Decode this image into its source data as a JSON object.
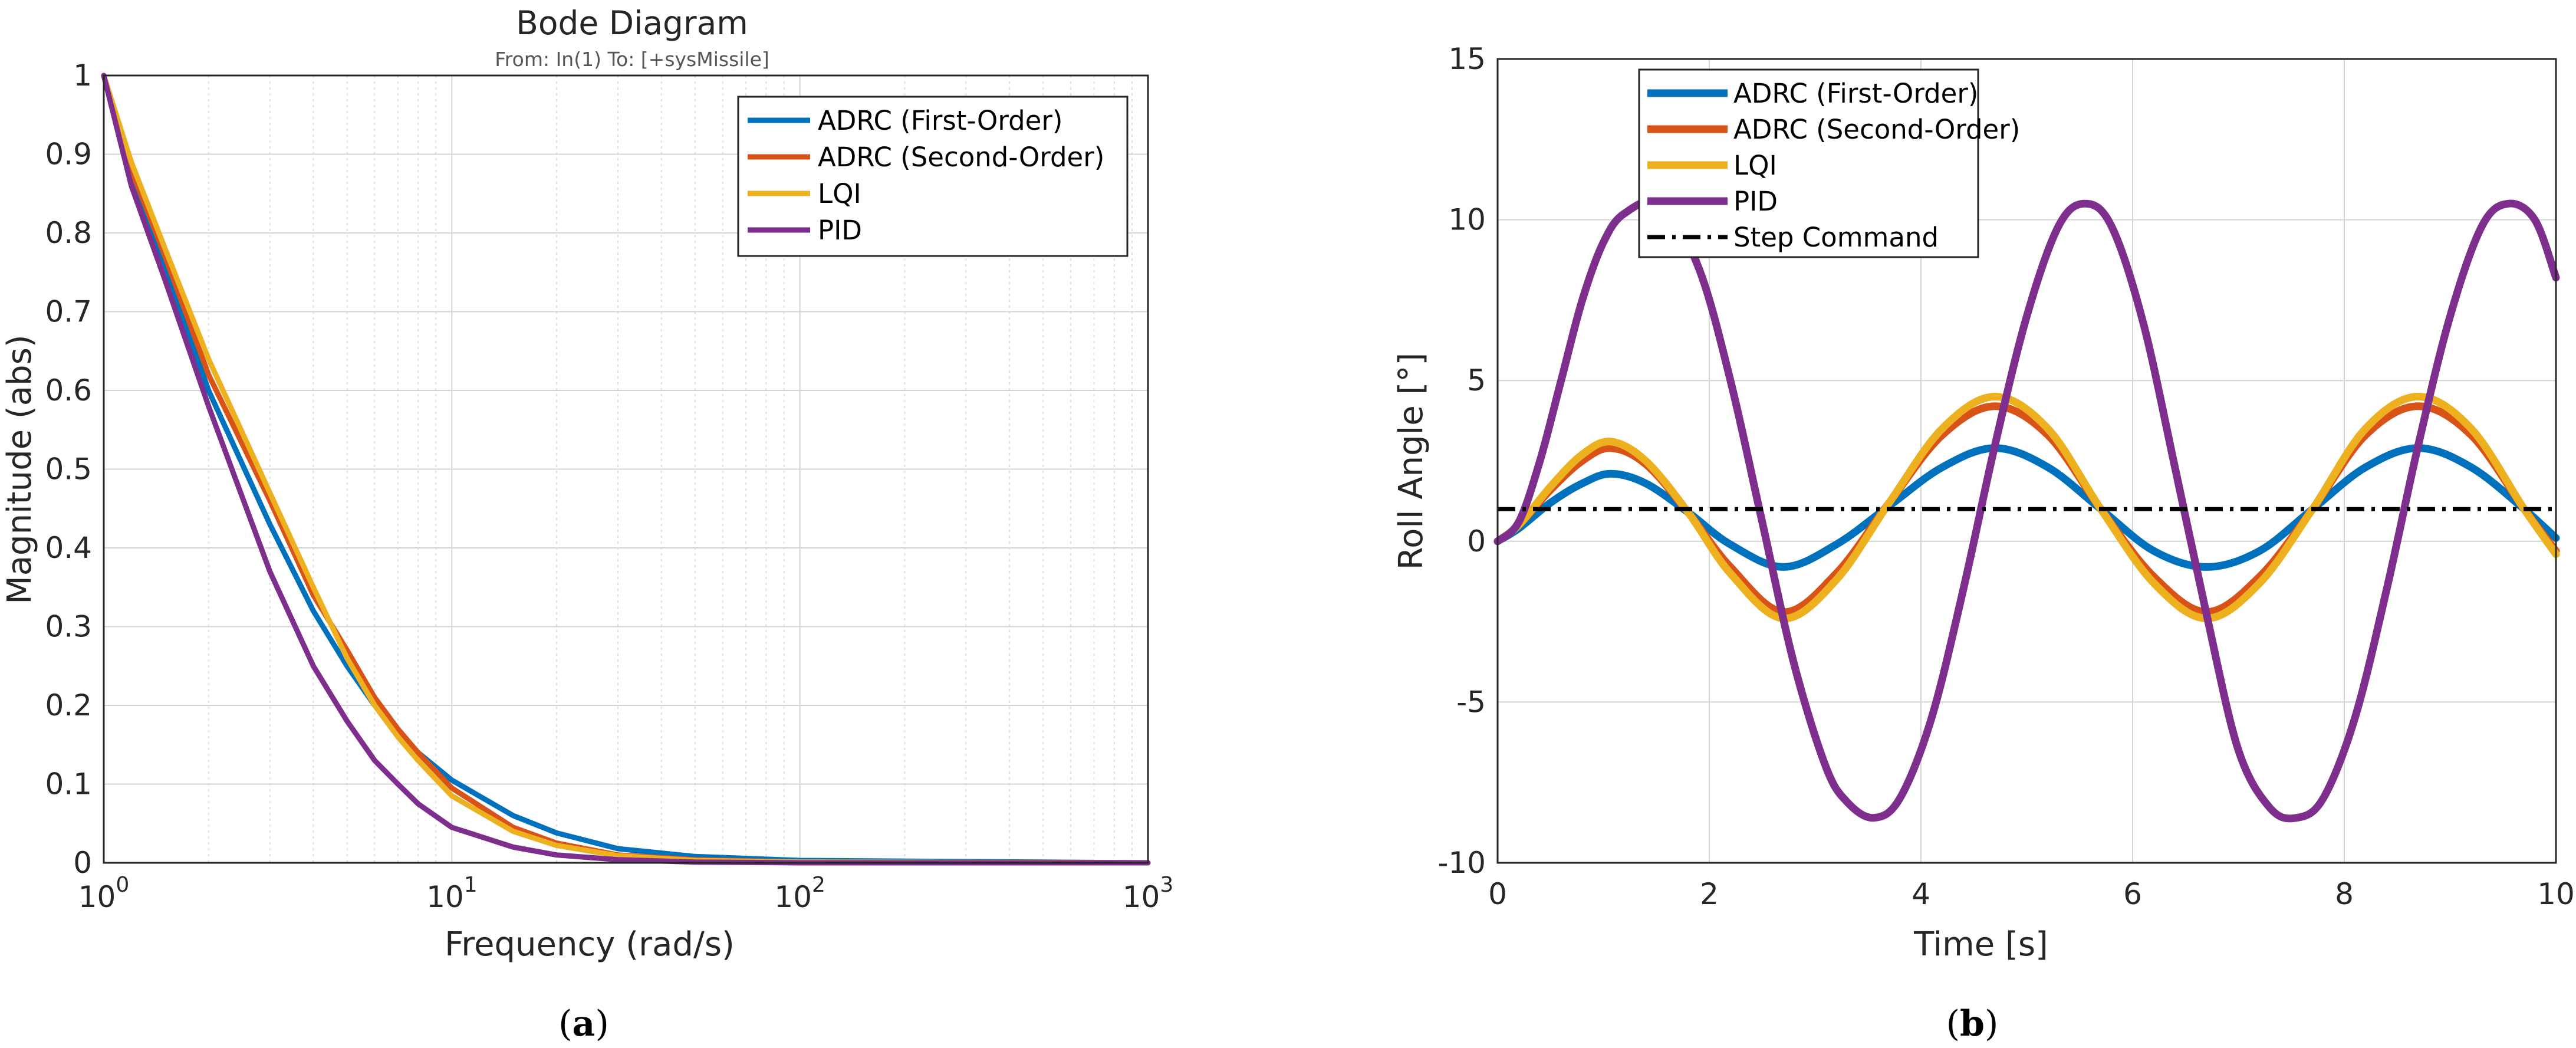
{
  "panels": [
    {
      "label_open": "(",
      "label_letter": "a",
      "label_close": ")"
    },
    {
      "label_open": "(",
      "label_letter": "b",
      "label_close": ")"
    }
  ],
  "chart_data": [
    {
      "type": "line",
      "title": "Bode Diagram",
      "subtitle": "From: In(1)  To: [+sysMissile]",
      "xlabel": "Frequency  (rad/s)",
      "ylabel": "Magnitude (abs)",
      "x_scale": "log",
      "xlim": [
        1,
        1000
      ],
      "ylim": [
        0,
        1
      ],
      "xticks": [
        1,
        10,
        100,
        1000
      ],
      "xtick_labels": [
        {
          "base": "10",
          "exp": "0"
        },
        {
          "base": "10",
          "exp": "1"
        },
        {
          "base": "10",
          "exp": "2"
        },
        {
          "base": "10",
          "exp": "3"
        }
      ],
      "yticks": [
        0,
        0.1,
        0.2,
        0.3,
        0.4,
        0.5,
        0.6,
        0.7,
        0.8,
        0.9,
        1
      ],
      "ytick_labels": [
        "0",
        "0.1",
        "0.2",
        "0.3",
        "0.4",
        "0.5",
        "0.6",
        "0.7",
        "0.8",
        "0.9",
        "1"
      ],
      "grid": true,
      "minor_grid": true,
      "legend_position": "top-right",
      "series": [
        {
          "name": "ADRC (First-Order)",
          "color": "#0072BD",
          "x": [
            1,
            1.2,
            1.5,
            2,
            3,
            4,
            5,
            6,
            7,
            8,
            10,
            15,
            20,
            30,
            50,
            100,
            1000
          ],
          "y": [
            1.0,
            0.87,
            0.76,
            0.6,
            0.43,
            0.32,
            0.25,
            0.2,
            0.165,
            0.14,
            0.105,
            0.06,
            0.038,
            0.018,
            0.008,
            0.003,
            0.0
          ]
        },
        {
          "name": "ADRC (Second-Order)",
          "color": "#D95319",
          "x": [
            1,
            1.2,
            1.5,
            2,
            3,
            4,
            5,
            6,
            7,
            8,
            10,
            15,
            20,
            30,
            50,
            100,
            1000
          ],
          "y": [
            1.0,
            0.88,
            0.77,
            0.62,
            0.46,
            0.34,
            0.27,
            0.21,
            0.17,
            0.14,
            0.095,
            0.045,
            0.025,
            0.01,
            0.004,
            0.001,
            0.0
          ]
        },
        {
          "name": "LQI",
          "color": "#EDB120",
          "x": [
            1,
            1.2,
            1.5,
            2,
            3,
            4,
            5,
            6,
            7,
            8,
            10,
            15,
            20,
            30,
            50,
            100,
            1000
          ],
          "y": [
            1.0,
            0.89,
            0.78,
            0.64,
            0.47,
            0.35,
            0.26,
            0.2,
            0.16,
            0.13,
            0.085,
            0.04,
            0.022,
            0.009,
            0.003,
            0.001,
            0.0
          ]
        },
        {
          "name": "PID",
          "color": "#7E2F8E",
          "x": [
            1,
            1.2,
            1.5,
            2,
            3,
            4,
            5,
            6,
            7,
            8,
            10,
            15,
            20,
            30,
            50,
            100,
            1000
          ],
          "y": [
            1.0,
            0.86,
            0.74,
            0.58,
            0.37,
            0.25,
            0.18,
            0.13,
            0.1,
            0.075,
            0.045,
            0.02,
            0.01,
            0.004,
            0.001,
            0.0,
            0.0
          ]
        }
      ]
    },
    {
      "type": "line",
      "title": "",
      "xlabel": "Time [s]",
      "ylabel": "Roll Angle [°]",
      "xlim": [
        0,
        10
      ],
      "ylim": [
        -10,
        15
      ],
      "xticks": [
        0,
        2,
        4,
        6,
        8,
        10
      ],
      "xtick_labels": [
        "0",
        "2",
        "4",
        "6",
        "8",
        "10"
      ],
      "yticks": [
        -10,
        -5,
        0,
        5,
        10,
        15
      ],
      "ytick_labels": [
        "-10",
        "-5",
        "0",
        "5",
        "10",
        "15"
      ],
      "grid": true,
      "legend_position": "top-left",
      "series": [
        {
          "name": "ADRC (First-Order)",
          "color": "#0072BD",
          "dashed": false,
          "x": [
            0,
            0.2,
            0.5,
            0.8,
            1.07,
            1.4,
            1.8,
            2.2,
            2.7,
            3.2,
            3.7,
            4.2,
            4.7,
            5.2,
            5.7,
            6.2,
            6.7,
            7.2,
            7.7,
            8.2,
            8.7,
            9.2,
            9.7,
            10
          ],
          "y": [
            0,
            0.4,
            1.2,
            1.8,
            2.1,
            1.8,
            0.9,
            -0.1,
            -0.8,
            -0.1,
            1.1,
            2.3,
            2.9,
            2.3,
            1.0,
            -0.3,
            -0.8,
            -0.3,
            1.0,
            2.3,
            2.9,
            2.3,
            1.0,
            0.1
          ]
        },
        {
          "name": "ADRC (Second-Order)",
          "color": "#D95319",
          "dashed": false,
          "x": [
            0,
            0.2,
            0.5,
            0.8,
            1.07,
            1.4,
            1.8,
            2.2,
            2.7,
            3.2,
            3.7,
            4.2,
            4.7,
            5.2,
            5.7,
            6.2,
            6.7,
            7.2,
            7.7,
            8.2,
            8.7,
            9.2,
            9.7,
            10
          ],
          "y": [
            0,
            0.5,
            1.6,
            2.5,
            2.9,
            2.4,
            0.9,
            -0.8,
            -2.2,
            -1.0,
            1.2,
            3.3,
            4.2,
            3.3,
            1.0,
            -1.1,
            -2.2,
            -1.1,
            1.0,
            3.3,
            4.2,
            3.3,
            1.0,
            -0.3
          ]
        },
        {
          "name": "LQI",
          "color": "#EDB120",
          "dashed": false,
          "x": [
            0,
            0.2,
            0.5,
            0.8,
            1.07,
            1.4,
            1.8,
            2.2,
            2.7,
            3.2,
            3.7,
            4.2,
            4.7,
            5.2,
            5.7,
            6.2,
            6.7,
            7.2,
            7.7,
            8.2,
            8.7,
            9.2,
            9.7,
            10
          ],
          "y": [
            0,
            0.5,
            1.7,
            2.7,
            3.1,
            2.5,
            0.9,
            -1.0,
            -2.4,
            -1.2,
            1.2,
            3.5,
            4.5,
            3.5,
            1.0,
            -1.3,
            -2.4,
            -1.3,
            1.0,
            3.5,
            4.5,
            3.5,
            1.0,
            -0.4
          ]
        },
        {
          "name": "PID",
          "color": "#7E2F8E",
          "dashed": false,
          "x": [
            0,
            0.2,
            0.4,
            0.6,
            0.8,
            1.0,
            1.2,
            1.55,
            1.9,
            2.2,
            2.5,
            2.8,
            3.1,
            3.3,
            3.55,
            3.8,
            4.1,
            4.4,
            4.7,
            5.0,
            5.3,
            5.55,
            5.8,
            6.1,
            6.4,
            6.7,
            7.0,
            7.3,
            7.55,
            7.8,
            8.1,
            8.4,
            8.7,
            9.0,
            9.3,
            9.55,
            9.8,
            10
          ],
          "y": [
            0,
            0.6,
            2.5,
            5.0,
            7.5,
            9.3,
            10.2,
            10.5,
            8.5,
            5.0,
            0.6,
            -3.8,
            -7.0,
            -8.1,
            -8.6,
            -8.0,
            -5.5,
            -1.5,
            3.0,
            7.0,
            9.8,
            10.5,
            9.8,
            6.8,
            2.3,
            -2.3,
            -6.5,
            -8.3,
            -8.6,
            -8.0,
            -5.5,
            -1.5,
            3.0,
            7.0,
            9.8,
            10.5,
            10.0,
            8.2
          ]
        },
        {
          "name": "Step Command",
          "color": "#000000",
          "dashed": true,
          "x": [
            0,
            10
          ],
          "y": [
            1,
            1
          ]
        }
      ]
    }
  ]
}
